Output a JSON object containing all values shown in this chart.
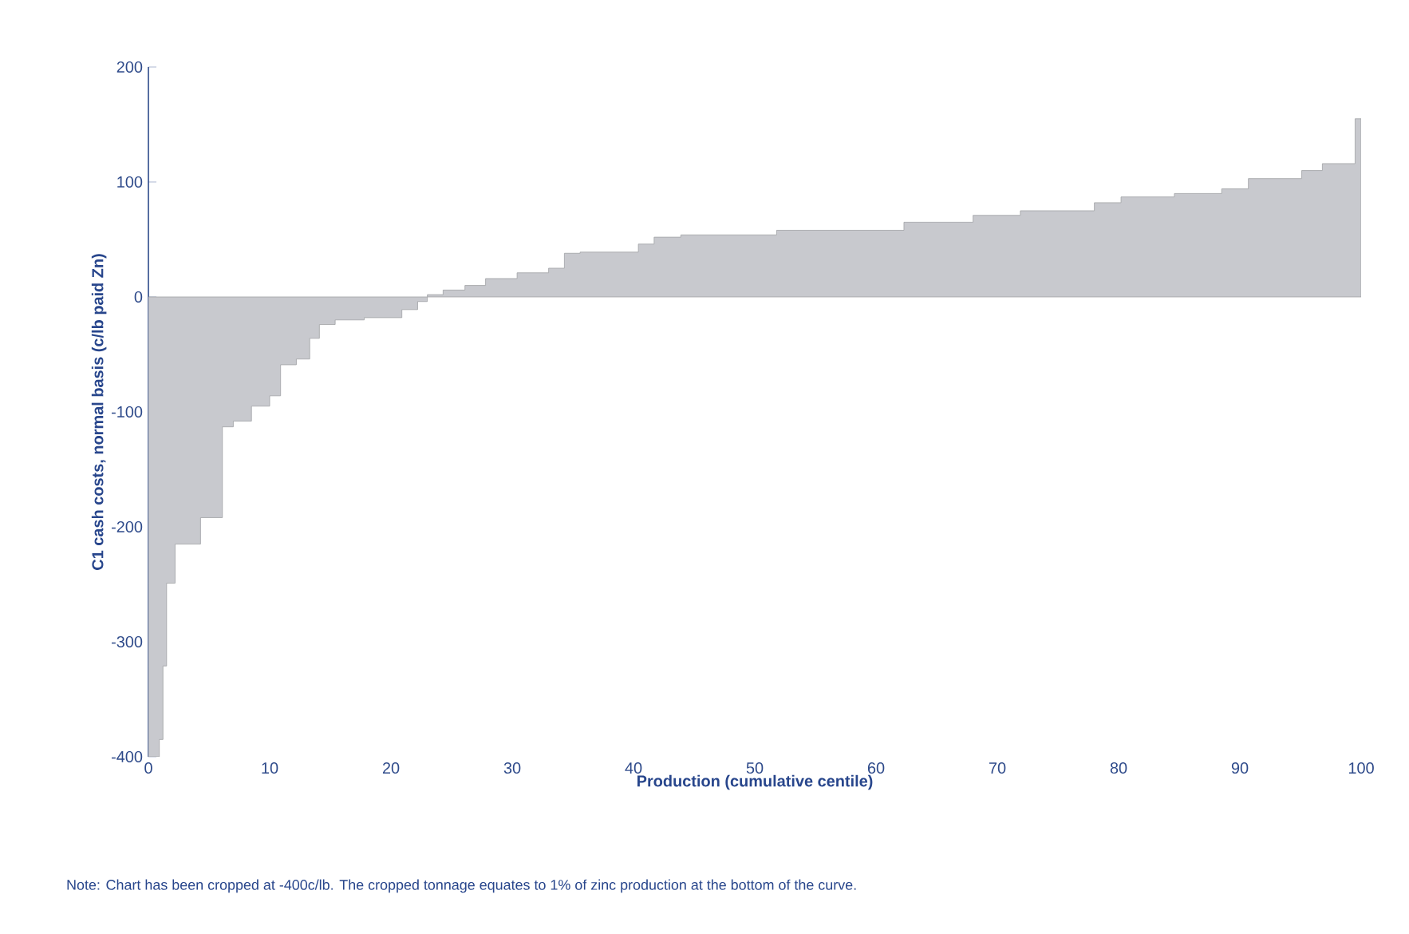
{
  "chart_data": {
    "type": "area",
    "xlabel": "Production (cumulative centile)",
    "ylabel": "C1 cash costs, normal basis (c/lb paid Zn)",
    "annotations": [
      "Note: Chart has been cropped at -400c/lb. The cropped tonnage equates to 1% of zinc production at the bottom of the curve."
    ],
    "x": [
      0,
      0.9,
      1.2,
      1.5,
      2.2,
      4.3,
      6.1,
      7.0,
      8.5,
      10.0,
      10.9,
      12.2,
      13.3,
      14.1,
      15.4,
      17.8,
      20.9,
      22.2,
      23.0,
      24.3,
      26.1,
      27.8,
      30.4,
      33.0,
      34.3,
      35.6,
      40.4,
      41.7,
      43.9,
      51.8,
      62.3,
      68.0,
      71.9,
      78.0,
      80.2,
      84.6,
      88.5,
      90.7,
      95.1,
      96.8,
      99.5
    ],
    "series": [
      {
        "color": "#c8c9ce",
        "values": [
          -400,
          -385,
          -321,
          -249,
          -215,
          -192,
          -113,
          -108,
          -95,
          -86,
          -59,
          -54,
          -36,
          -24,
          -20,
          -18,
          -11,
          -4,
          2,
          6,
          10,
          16,
          21,
          25,
          38,
          39,
          46,
          52,
          54,
          58,
          65,
          71,
          75,
          82,
          87,
          90,
          94,
          103,
          110,
          116,
          155
        ]
      }
    ],
    "xlim": [
      0,
      100
    ],
    "ylim": [
      -400,
      200
    ],
    "xticks": [
      0,
      10,
      20,
      30,
      40,
      50,
      60,
      70,
      80,
      90,
      100
    ],
    "yticks": [
      -400,
      -300,
      -200,
      -100,
      0,
      100,
      200
    ],
    "grid": false
  }
}
